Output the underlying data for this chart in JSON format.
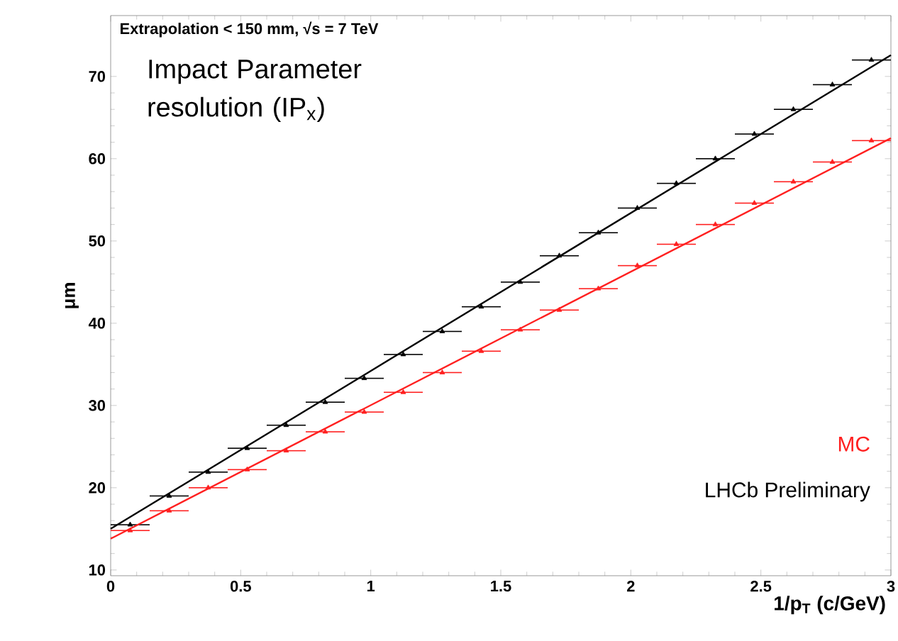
{
  "chart_data": {
    "type": "scatter",
    "xlabel": "1/p$_{T}$ (c/GeV)",
    "ylabel": "μm",
    "annotations": [
      "Extrapolation < 150 mm, √s = 7 TeV",
      "Impact Parameter resolution (IP$_{x}$)"
    ],
    "xlim": [
      0,
      3
    ],
    "ylim": [
      9.3,
      77.4
    ],
    "xticks": [
      0,
      0.5,
      1,
      1.5,
      2,
      2.5,
      3
    ],
    "yticks": [
      10,
      20,
      30,
      40,
      50,
      60,
      70
    ],
    "grid": false,
    "marker": "triangle",
    "series": [
      {
        "name": "MC",
        "color": "#ff2020",
        "x": [
          0.075,
          0.225,
          0.375,
          0.525,
          0.675,
          0.825,
          0.975,
          1.125,
          1.275,
          1.425,
          1.575,
          1.725,
          1.875,
          2.025,
          2.175,
          2.325,
          2.475,
          2.625,
          2.775,
          2.925
        ],
        "values": [
          14.8,
          17.2,
          20.0,
          22.2,
          24.5,
          26.8,
          29.2,
          31.6,
          34.0,
          36.6,
          39.2,
          41.6,
          44.2,
          47.0,
          49.6,
          52.0,
          54.6,
          57.2,
          59.6,
          62.2
        ],
        "xerrors": [
          0.075,
          0.075,
          0.075,
          0.075,
          0.075,
          0.075,
          0.075,
          0.075,
          0.075,
          0.075,
          0.075,
          0.075,
          0.075,
          0.075,
          0.075,
          0.075,
          0.075,
          0.075,
          0.075,
          0.075
        ]
      },
      {
        "name": "LHCb Preliminary",
        "color": "#000000",
        "x": [
          0.075,
          0.225,
          0.375,
          0.525,
          0.675,
          0.825,
          0.975,
          1.125,
          1.275,
          1.425,
          1.575,
          1.725,
          1.875,
          2.025,
          2.175,
          2.325,
          2.475,
          2.625,
          2.775,
          2.925
        ],
        "values": [
          15.5,
          19.0,
          21.9,
          24.8,
          27.6,
          30.4,
          33.3,
          36.2,
          39.0,
          42.0,
          45.0,
          48.2,
          51.0,
          54.0,
          57.0,
          60.0,
          63.0,
          66.0,
          69.0,
          72.0
        ],
        "xerrors": [
          0.075,
          0.075,
          0.075,
          0.075,
          0.075,
          0.075,
          0.075,
          0.075,
          0.075,
          0.075,
          0.075,
          0.075,
          0.075,
          0.075,
          0.075,
          0.075,
          0.075,
          0.075,
          0.075,
          0.075
        ]
      },
      {
        "color": "#ff2020",
        "type": "line",
        "marker": "none",
        "x": [
          0,
          3
        ],
        "values": [
          13.8,
          62.5
        ]
      },
      {
        "color": "#000000",
        "type": "line",
        "marker": "none",
        "x": [
          0,
          3
        ],
        "values": [
          15.0,
          72.6
        ]
      }
    ]
  }
}
